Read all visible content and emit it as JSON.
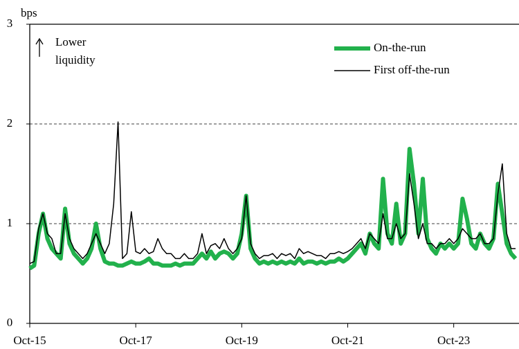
{
  "chart_data": {
    "type": "line",
    "y_label": "bps",
    "annotation": [
      "Lower",
      "liquidity"
    ],
    "x": [
      "2015-10",
      "2015-11",
      "2015-12",
      "2016-01",
      "2016-02",
      "2016-03",
      "2016-04",
      "2016-05",
      "2016-06",
      "2016-07",
      "2016-08",
      "2016-09",
      "2016-10",
      "2016-11",
      "2016-12",
      "2017-01",
      "2017-02",
      "2017-03",
      "2017-04",
      "2017-05",
      "2017-06",
      "2017-07",
      "2017-08",
      "2017-09",
      "2017-10",
      "2017-11",
      "2017-12",
      "2018-01",
      "2018-02",
      "2018-03",
      "2018-04",
      "2018-05",
      "2018-06",
      "2018-07",
      "2018-08",
      "2018-09",
      "2018-10",
      "2018-11",
      "2018-12",
      "2019-01",
      "2019-02",
      "2019-03",
      "2019-04",
      "2019-05",
      "2019-06",
      "2019-07",
      "2019-08",
      "2019-09",
      "2019-10",
      "2019-11",
      "2019-12",
      "2020-01",
      "2020-02",
      "2020-03",
      "2020-04",
      "2020-05",
      "2020-06",
      "2020-07",
      "2020-08",
      "2020-09",
      "2020-10",
      "2020-11",
      "2020-12",
      "2021-01",
      "2021-02",
      "2021-03",
      "2021-04",
      "2021-05",
      "2021-06",
      "2021-07",
      "2021-08",
      "2021-09",
      "2021-10",
      "2021-11",
      "2021-12",
      "2022-01",
      "2022-02",
      "2022-03",
      "2022-04",
      "2022-05",
      "2022-06",
      "2022-07",
      "2022-08",
      "2022-09",
      "2022-10",
      "2022-11",
      "2022-12",
      "2023-01",
      "2023-02",
      "2023-03",
      "2023-04",
      "2023-05",
      "2023-06",
      "2023-07",
      "2023-08",
      "2023-09",
      "2023-10",
      "2023-11",
      "2023-12",
      "2024-01",
      "2024-02",
      "2024-03",
      "2024-04",
      "2024-05",
      "2024-06",
      "2024-07",
      "2024-08",
      "2024-09",
      "2024-10",
      "2024-11",
      "2024-12"
    ],
    "series": [
      {
        "name": "On-the-run",
        "color": "#22b14c",
        "width": 6,
        "values": [
          0.55,
          0.58,
          0.9,
          1.1,
          0.85,
          0.75,
          0.7,
          0.65,
          1.15,
          0.8,
          0.7,
          0.65,
          0.6,
          0.65,
          0.75,
          1.0,
          0.75,
          0.62,
          0.6,
          0.6,
          0.58,
          0.58,
          0.6,
          0.62,
          0.6,
          0.6,
          0.62,
          0.65,
          0.6,
          0.6,
          0.58,
          0.58,
          0.58,
          0.6,
          0.58,
          0.6,
          0.6,
          0.6,
          0.65,
          0.7,
          0.65,
          0.72,
          0.65,
          0.7,
          0.72,
          0.7,
          0.65,
          0.7,
          0.9,
          1.28,
          0.75,
          0.65,
          0.6,
          0.62,
          0.6,
          0.62,
          0.6,
          0.62,
          0.6,
          0.62,
          0.6,
          0.65,
          0.6,
          0.62,
          0.62,
          0.6,
          0.62,
          0.6,
          0.62,
          0.62,
          0.65,
          0.62,
          0.65,
          0.7,
          0.75,
          0.8,
          0.7,
          0.9,
          0.8,
          0.75,
          1.45,
          0.9,
          0.8,
          1.2,
          0.8,
          0.9,
          1.75,
          1.4,
          0.9,
          1.45,
          0.85,
          0.75,
          0.7,
          0.8,
          0.75,
          0.8,
          0.75,
          0.8,
          1.25,
          1.05,
          0.8,
          0.75,
          0.9,
          0.8,
          0.75,
          0.85,
          1.4,
          1.1,
          0.8,
          0.7,
          0.65
        ]
      },
      {
        "name": "First off-the-run",
        "color": "#000000",
        "width": 1.5,
        "values": [
          0.6,
          0.62,
          0.95,
          1.1,
          0.9,
          0.85,
          0.7,
          0.7,
          1.1,
          0.85,
          0.75,
          0.7,
          0.65,
          0.7,
          0.8,
          0.9,
          0.8,
          0.7,
          0.8,
          1.2,
          2.02,
          0.65,
          0.7,
          1.12,
          0.72,
          0.7,
          0.75,
          0.7,
          0.72,
          0.85,
          0.75,
          0.7,
          0.7,
          0.65,
          0.65,
          0.7,
          0.65,
          0.65,
          0.7,
          0.9,
          0.7,
          0.78,
          0.8,
          0.75,
          0.85,
          0.75,
          0.7,
          0.75,
          0.85,
          1.28,
          0.8,
          0.7,
          0.65,
          0.68,
          0.68,
          0.7,
          0.65,
          0.7,
          0.68,
          0.7,
          0.65,
          0.75,
          0.7,
          0.72,
          0.7,
          0.68,
          0.68,
          0.65,
          0.7,
          0.7,
          0.72,
          0.7,
          0.72,
          0.75,
          0.8,
          0.85,
          0.75,
          0.9,
          0.85,
          0.8,
          1.1,
          0.85,
          0.85,
          1.0,
          0.85,
          0.9,
          1.5,
          1.2,
          0.85,
          1.0,
          0.8,
          0.8,
          0.75,
          0.8,
          0.8,
          0.85,
          0.8,
          0.85,
          0.95,
          0.9,
          0.85,
          0.85,
          0.9,
          0.8,
          0.8,
          0.85,
          1.3,
          1.6,
          0.9,
          0.75,
          0.75
        ]
      }
    ],
    "xlim": [
      "2015-10",
      "2024-12"
    ],
    "xticks": [
      {
        "value": "2015-10",
        "label": "Oct-15"
      },
      {
        "value": "2017-10",
        "label": "Oct-17"
      },
      {
        "value": "2019-10",
        "label": "Oct-19"
      },
      {
        "value": "2021-10",
        "label": "Oct-21"
      },
      {
        "value": "2023-10",
        "label": "Oct-23"
      }
    ],
    "ylim": [
      0,
      3
    ],
    "yticks": [
      0,
      1,
      2,
      3
    ],
    "grid": true,
    "legend": "top-right"
  }
}
